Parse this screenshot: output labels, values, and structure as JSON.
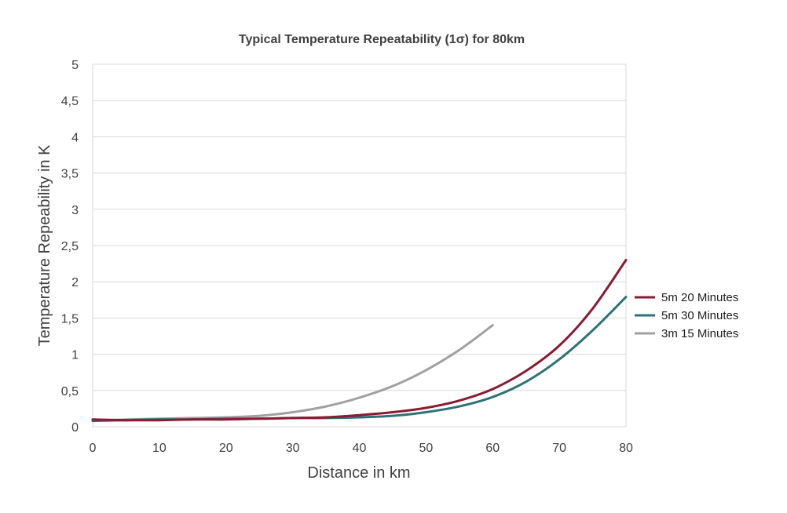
{
  "chart_data": {
    "type": "line",
    "title": "Typical Temperature Repeatability (1σ) for 80km",
    "xlabel": "Distance in km",
    "ylabel": "Temperature Repeability in K",
    "xlim": [
      0,
      80
    ],
    "ylim": [
      0,
      5
    ],
    "x_ticks": [
      "0",
      "10",
      "20",
      "30",
      "40",
      "50",
      "60",
      "70",
      "80"
    ],
    "y_ticks": [
      "0",
      "0,5",
      "1",
      "1,5",
      "2",
      "2,5",
      "3",
      "3,5",
      "4",
      "4,5",
      "5"
    ],
    "grid": "horizontal",
    "legend_position": "right",
    "series": [
      {
        "name": "5m 20 Minutes",
        "color": "#8B1A32",
        "x": [
          0,
          5,
          10,
          15,
          20,
          25,
          30,
          35,
          40,
          45,
          50,
          55,
          60,
          65,
          70,
          75,
          80
        ],
        "y": [
          0.1,
          0.09,
          0.09,
          0.1,
          0.1,
          0.11,
          0.12,
          0.13,
          0.16,
          0.2,
          0.26,
          0.36,
          0.52,
          0.77,
          1.12,
          1.63,
          2.3
        ]
      },
      {
        "name": "5m 30 Minutes",
        "color": "#2E7276",
        "x": [
          0,
          5,
          10,
          15,
          20,
          25,
          30,
          35,
          40,
          45,
          50,
          55,
          60,
          65,
          70,
          75,
          80
        ],
        "y": [
          0.08,
          0.09,
          0.1,
          0.1,
          0.11,
          0.11,
          0.12,
          0.12,
          0.13,
          0.15,
          0.2,
          0.28,
          0.41,
          0.62,
          0.93,
          1.33,
          1.79
        ]
      },
      {
        "name": "3m 15 Minutes",
        "color": "#A0A0A0",
        "x": [
          0,
          5,
          10,
          15,
          20,
          25,
          30,
          35,
          40,
          45,
          50,
          55,
          60
        ],
        "y": [
          0.08,
          0.1,
          0.11,
          0.12,
          0.13,
          0.15,
          0.2,
          0.28,
          0.4,
          0.56,
          0.78,
          1.06,
          1.4
        ]
      }
    ]
  }
}
